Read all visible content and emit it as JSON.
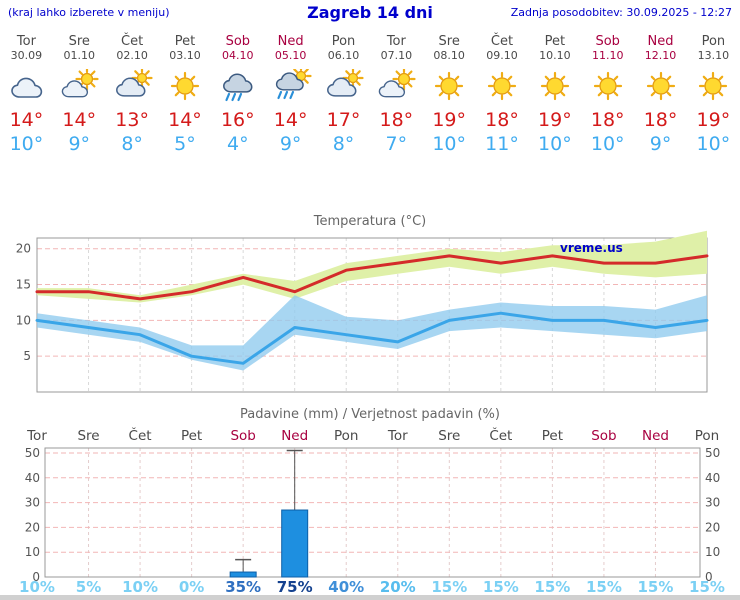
{
  "header": {
    "left_note": "(kraj lahko izberete v meniju)",
    "title": "Zagreb 14 dni",
    "last_update": "Zadnja posodobitev: 30.09.2025 - 12:27"
  },
  "colors": {
    "header_blue": "#0000cc",
    "weekday_text": "#4a4a4a",
    "weekend_text": "#a80040",
    "high_temp_text": "#d41a1a",
    "low_temp_text": "#3fabf0"
  },
  "forecast": {
    "days": [
      {
        "name": "Tor",
        "date": "30.09",
        "weekend": false,
        "icon": "cloudy",
        "high": "14°",
        "low": "10°"
      },
      {
        "name": "Sre",
        "date": "01.10",
        "weekend": false,
        "icon": "partly-cloudy",
        "high": "14°",
        "low": "9°"
      },
      {
        "name": "Čet",
        "date": "02.10",
        "weekend": false,
        "icon": "mostly-cloudy",
        "high": "13°",
        "low": "8°"
      },
      {
        "name": "Pet",
        "date": "03.10",
        "weekend": false,
        "icon": "sunny",
        "high": "14°",
        "low": "5°"
      },
      {
        "name": "Sob",
        "date": "04.10",
        "weekend": true,
        "icon": "rain",
        "high": "16°",
        "low": "4°"
      },
      {
        "name": "Ned",
        "date": "05.10",
        "weekend": true,
        "icon": "rain-sun",
        "high": "14°",
        "low": "9°"
      },
      {
        "name": "Pon",
        "date": "06.10",
        "weekend": false,
        "icon": "mostly-cloudy",
        "high": "17°",
        "low": "8°"
      },
      {
        "name": "Tor",
        "date": "07.10",
        "weekend": false,
        "icon": "partly-cloudy",
        "high": "18°",
        "low": "7°"
      },
      {
        "name": "Sre",
        "date": "08.10",
        "weekend": false,
        "icon": "sunny",
        "high": "19°",
        "low": "10°"
      },
      {
        "name": "Čet",
        "date": "09.10",
        "weekend": false,
        "icon": "sunny",
        "high": "18°",
        "low": "11°"
      },
      {
        "name": "Pet",
        "date": "10.10",
        "weekend": false,
        "icon": "sunny",
        "high": "19°",
        "low": "10°"
      },
      {
        "name": "Sob",
        "date": "11.10",
        "weekend": true,
        "icon": "sunny",
        "high": "18°",
        "low": "10°"
      },
      {
        "name": "Ned",
        "date": "12.10",
        "weekend": true,
        "icon": "sunny",
        "high": "18°",
        "low": "9°"
      },
      {
        "name": "Pon",
        "date": "13.10",
        "weekend": false,
        "icon": "sunny",
        "high": "19°",
        "low": "10°"
      }
    ]
  },
  "chart_data": [
    {
      "type": "line",
      "title": "Temperatura (°C)",
      "watermark": "vreme.us",
      "x_labels": [
        "Tor",
        "Sre",
        "Čet",
        "Pet",
        "Sob",
        "Ned",
        "Pon",
        "Tor",
        "Sre",
        "Čet",
        "Pet",
        "Sob",
        "Ned",
        "Pon"
      ],
      "ylim": [
        0,
        21.5
      ],
      "yticks": [
        5,
        10,
        15,
        20
      ],
      "grid": true,
      "series": [
        {
          "name": "high",
          "values": [
            14,
            14,
            13,
            14,
            16,
            14,
            17,
            18,
            19,
            18,
            19,
            18,
            18,
            19
          ]
        },
        {
          "name": "high_band_upper",
          "values": [
            14.5,
            14.5,
            13.5,
            15,
            16.5,
            15.5,
            18,
            19,
            20,
            19.5,
            20.5,
            20.5,
            21,
            22.5
          ]
        },
        {
          "name": "high_band_lower",
          "values": [
            13.5,
            13,
            12.5,
            13.5,
            15,
            13,
            15.5,
            16.5,
            17.5,
            16.5,
            17.5,
            16.5,
            16,
            16.5
          ]
        },
        {
          "name": "low",
          "values": [
            10,
            9,
            8,
            5,
            4,
            9,
            8,
            7,
            10,
            11,
            10,
            10,
            9,
            10
          ]
        },
        {
          "name": "low_band_upper",
          "values": [
            11,
            10,
            9,
            6.5,
            6.5,
            13.5,
            10.5,
            10,
            11.5,
            12.5,
            12,
            12,
            11.5,
            13.5
          ]
        },
        {
          "name": "low_band_lower",
          "values": [
            9,
            8,
            7,
            4.5,
            3,
            8,
            7,
            6,
            8.5,
            9,
            8.5,
            8,
            7.5,
            8.5
          ]
        }
      ],
      "colors": {
        "high_line": "#d42a2a",
        "high_band": "#dff0a8",
        "low_line": "#3aa5e8",
        "low_band": "#8fcbee",
        "hgrid": "#f2b6b6",
        "vgrid": "#d9d9d9",
        "border": "#999999",
        "tick_text": "#555555",
        "watermark_text": "#0000cc"
      }
    },
    {
      "type": "bar",
      "title": "Padavine (mm) / Verjetnost padavin (%)",
      "categories": [
        "Tor",
        "Sre",
        "Čet",
        "Pet",
        "Sob",
        "Ned",
        "Pon",
        "Tor",
        "Sre",
        "Čet",
        "Pet",
        "Sob",
        "Ned",
        "Pon"
      ],
      "weekend_flags": [
        false,
        false,
        false,
        false,
        true,
        true,
        false,
        false,
        false,
        false,
        false,
        true,
        true,
        false
      ],
      "ylim": [
        0,
        52
      ],
      "yticks": [
        0,
        10,
        20,
        30,
        40,
        50
      ],
      "grid": true,
      "precip_mm": [
        0,
        0,
        0,
        0,
        2,
        27,
        0,
        0,
        0,
        0,
        0,
        0,
        0,
        0
      ],
      "precip_max_mm": [
        0,
        0,
        0,
        0,
        7,
        51,
        0,
        0,
        0,
        0,
        0,
        0,
        0,
        0
      ],
      "probability_pct": [
        "10%",
        "5%",
        "10%",
        "0%",
        "35%",
        "75%",
        "40%",
        "20%",
        "15%",
        "15%",
        "15%",
        "15%",
        "15%",
        "15%"
      ],
      "probability_colors": [
        "#7bd0f4",
        "#7bd0f4",
        "#7bd0f4",
        "#7bd0f4",
        "#2f6fc0",
        "#14418f",
        "#3f8fd8",
        "#58bdee",
        "#7bd0f4",
        "#7bd0f4",
        "#7bd0f4",
        "#7bd0f4",
        "#7bd0f4",
        "#7bd0f4"
      ],
      "colors": {
        "bar_fill": "#1e8fe0",
        "bar_stroke": "#0d5fa8",
        "whisker": "#555555",
        "hgrid": "#f2b6b6",
        "vgrid": "#e4cccc",
        "border": "#999999",
        "tick_text": "#555555",
        "weekday_label": "#4a4a4a",
        "weekend_label": "#a80040"
      }
    }
  ]
}
